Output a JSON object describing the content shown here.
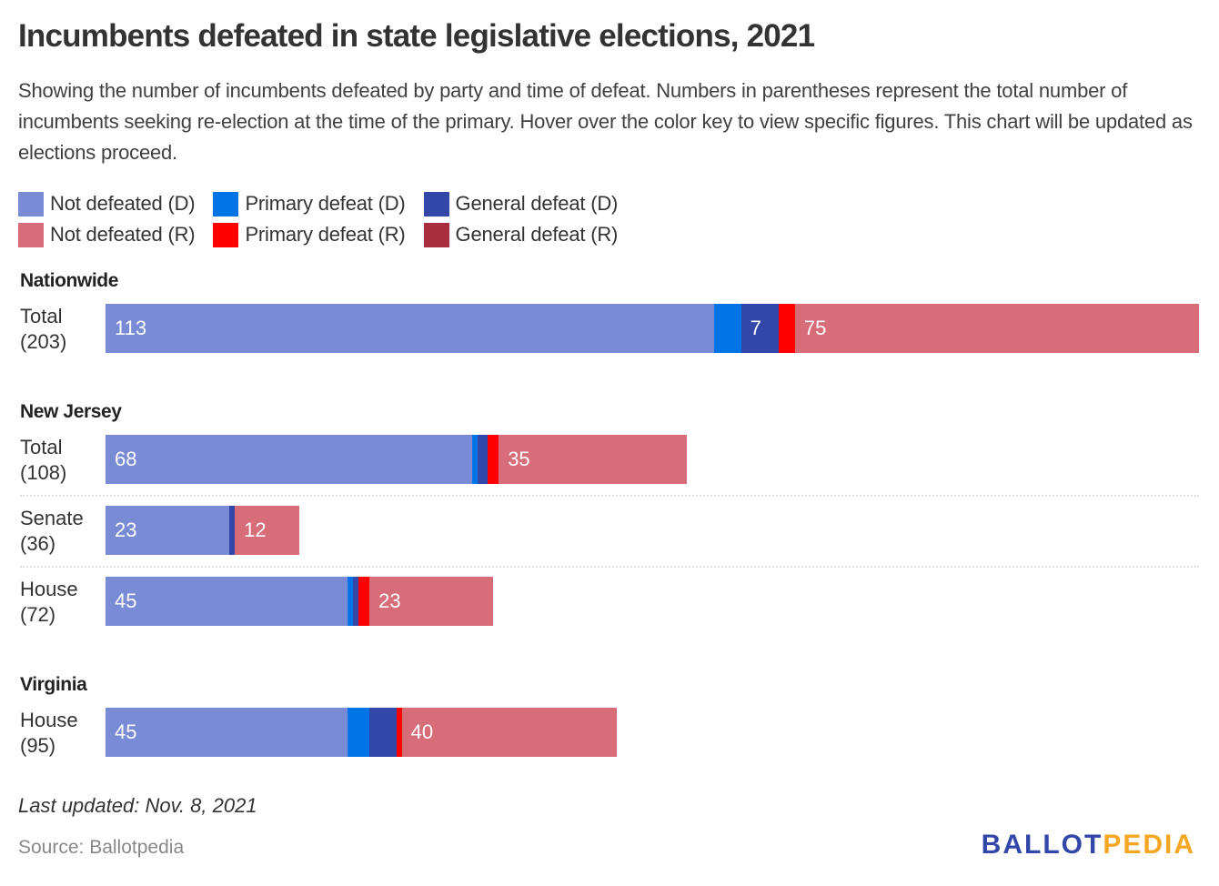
{
  "title": "Incumbents defeated in state legislative elections, 2021",
  "subtitle": "Showing the number of incumbents defeated by party and time of defeat. Numbers in parentheses represent the total number of incumbents seeking re-election at the time of the primary. Hover over the color key to view specific figures. This chart will be updated as elections proceed.",
  "legend": [
    {
      "label": "Not defeated (D)",
      "color": "#7a8bd6"
    },
    {
      "label": "Primary defeat (D)",
      "color": "#0073e6"
    },
    {
      "label": "General defeat (D)",
      "color": "#3347a8"
    },
    {
      "label": "Not defeated (R)",
      "color": "#d66d79"
    },
    {
      "label": "Primary defeat (R)",
      "color": "#ff0000"
    },
    {
      "label": "General defeat (R)",
      "color": "#a82e3e"
    }
  ],
  "chart_data": {
    "type": "bar",
    "orientation": "horizontal",
    "stacked": true,
    "title": "Incumbents defeated in state legislative elections, 2021",
    "series_names": [
      "Not defeated (D)",
      "Primary defeat (D)",
      "General defeat (D)",
      "Not defeated (R)",
      "Primary defeat (R)",
      "General defeat (R)"
    ],
    "groups": [
      {
        "name": "Nationwide",
        "rows": [
          {
            "label": "Total",
            "total": "(203)",
            "values": [
              113,
              5,
              7,
              75,
              3,
              0
            ],
            "labels": [
              "113",
              "",
              "7",
              "75",
              "",
              ""
            ]
          }
        ]
      },
      {
        "name": "New Jersey",
        "rows": [
          {
            "label": "Total",
            "total": "(108)",
            "values": [
              68,
              1,
              2,
              35,
              2,
              0
            ],
            "labels": [
              "68",
              "",
              "",
              "35",
              "",
              ""
            ]
          },
          {
            "label": "Senate",
            "total": "(36)",
            "values": [
              23,
              0,
              1,
              12,
              0,
              0
            ],
            "labels": [
              "23",
              "",
              "",
              "12",
              "",
              ""
            ]
          },
          {
            "label": "House",
            "total": "(72)",
            "values": [
              45,
              1,
              1,
              23,
              2,
              0
            ],
            "labels": [
              "45",
              "",
              "",
              "23",
              "",
              ""
            ]
          }
        ]
      },
      {
        "name": "Virginia",
        "rows": [
          {
            "label": "House",
            "total": "(95)",
            "values": [
              45,
              4,
              5,
              40,
              1,
              0
            ],
            "labels": [
              "45",
              "",
              "",
              "40",
              "",
              ""
            ]
          }
        ]
      }
    ],
    "xlim": [
      0,
      203
    ],
    "grid": false,
    "legend_position": "top-left"
  },
  "footer": {
    "updated": "Last updated: Nov. 8, 2021",
    "source": "Source: Ballotpedia",
    "logo_part1": "BALLOT",
    "logo_part2": "PEDIA"
  }
}
